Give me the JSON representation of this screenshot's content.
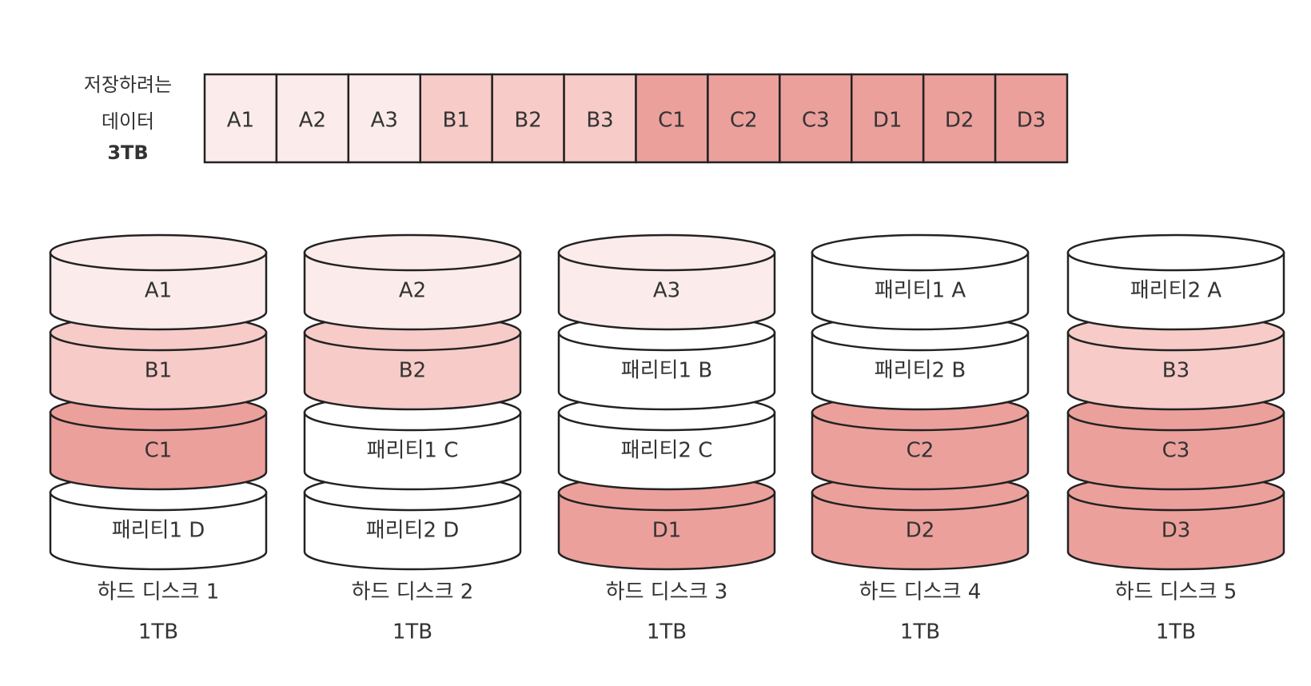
{
  "data_label": {
    "line1": "저장하려는",
    "line2": "데이터",
    "size": "3TB"
  },
  "colors": {
    "A": "#fbeceb",
    "B": "#f6cbc8",
    "C": "#eba09c",
    "D": "#eba09c",
    "parity": "#ffffff",
    "stroke": "#222222"
  },
  "data_blocks": [
    {
      "label": "A1",
      "group": "A"
    },
    {
      "label": "A2",
      "group": "A"
    },
    {
      "label": "A3",
      "group": "A"
    },
    {
      "label": "B1",
      "group": "B"
    },
    {
      "label": "B2",
      "group": "B"
    },
    {
      "label": "B3",
      "group": "B"
    },
    {
      "label": "C1",
      "group": "C"
    },
    {
      "label": "C2",
      "group": "C"
    },
    {
      "label": "C3",
      "group": "C"
    },
    {
      "label": "D1",
      "group": "D"
    },
    {
      "label": "D2",
      "group": "D"
    },
    {
      "label": "D3",
      "group": "D"
    }
  ],
  "disks": [
    {
      "name": "하드 디스크 1",
      "capacity": "1TB",
      "segments": [
        {
          "label": "A1",
          "group": "A"
        },
        {
          "label": "B1",
          "group": "B"
        },
        {
          "label": "C1",
          "group": "C"
        },
        {
          "label": "패리티1 D",
          "group": "parity"
        }
      ]
    },
    {
      "name": "하드 디스크 2",
      "capacity": "1TB",
      "segments": [
        {
          "label": "A2",
          "group": "A"
        },
        {
          "label": "B2",
          "group": "B"
        },
        {
          "label": "패리티1 C",
          "group": "parity"
        },
        {
          "label": "패리티2 D",
          "group": "parity"
        }
      ]
    },
    {
      "name": "하드 디스크 3",
      "capacity": "1TB",
      "segments": [
        {
          "label": "A3",
          "group": "A"
        },
        {
          "label": "패리티1 B",
          "group": "parity"
        },
        {
          "label": "패리티2 C",
          "group": "parity"
        },
        {
          "label": "D1",
          "group": "D"
        }
      ]
    },
    {
      "name": "하드 디스크 4",
      "capacity": "1TB",
      "segments": [
        {
          "label": "패리티1 A",
          "group": "parity"
        },
        {
          "label": "패리티2 B",
          "group": "parity"
        },
        {
          "label": "C2",
          "group": "C"
        },
        {
          "label": "D2",
          "group": "D"
        }
      ]
    },
    {
      "name": "하드 디스크 5",
      "capacity": "1TB",
      "segments": [
        {
          "label": "패리티2 A",
          "group": "parity"
        },
        {
          "label": "B3",
          "group": "B"
        },
        {
          "label": "C3",
          "group": "C"
        },
        {
          "label": "D3",
          "group": "D"
        }
      ]
    }
  ]
}
